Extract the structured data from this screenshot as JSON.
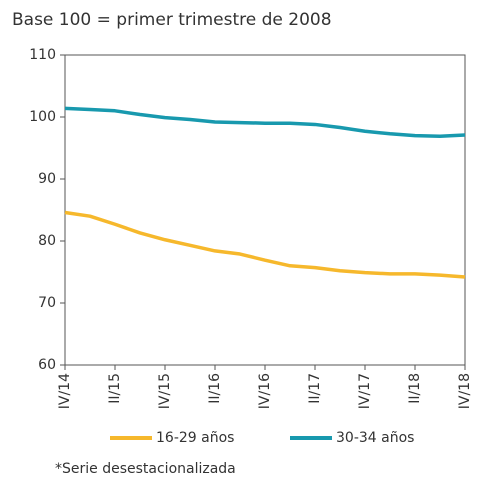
{
  "chart_data": {
    "type": "line",
    "title": "Base 100 = primer trimestre de 2008",
    "categories": [
      "IV/14",
      null,
      "II/15",
      null,
      "IV/15",
      null,
      "II/16",
      null,
      "IV/16",
      null,
      "II/17",
      null,
      "IV/17",
      null,
      "II/18",
      null,
      "IV/18"
    ],
    "series": [
      {
        "name": "16-29 años",
        "color": "#f6b82c",
        "values": [
          84.6,
          84.0,
          82.7,
          81.3,
          80.2,
          79.3,
          78.4,
          77.9,
          76.9,
          76.0,
          75.7,
          75.2,
          74.9,
          74.7,
          74.7,
          74.5,
          74.2
        ]
      },
      {
        "name": "30-34 años",
        "color": "#1899ae",
        "values": [
          101.4,
          101.2,
          101.0,
          100.4,
          99.9,
          99.6,
          99.2,
          99.1,
          99.0,
          99.0,
          98.8,
          98.3,
          97.7,
          97.3,
          97.0,
          96.9,
          97.1
        ]
      }
    ],
    "ylim": [
      60,
      110
    ],
    "yticks": [
      60,
      70,
      80,
      90,
      100,
      110
    ],
    "grid": false,
    "footnote": "*Serie desestacionalizada"
  }
}
